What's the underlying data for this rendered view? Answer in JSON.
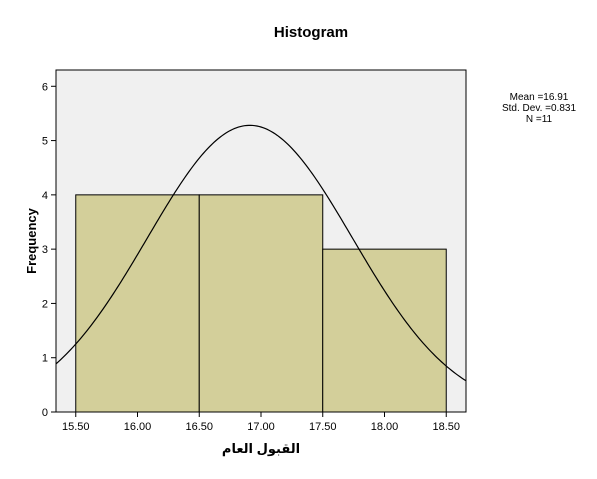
{
  "chart_data": {
    "type": "histogram",
    "title": "Histogram",
    "xlabel": "القبول العام",
    "ylabel": "Frequency",
    "xlim": [
      15.34,
      18.66
    ],
    "ylim": [
      0,
      6.3
    ],
    "x_ticks": [
      "15.50",
      "16.00",
      "16.50",
      "17.00",
      "17.50",
      "18.00",
      "18.50"
    ],
    "y_ticks": [
      "0",
      "1",
      "2",
      "3",
      "4",
      "5",
      "6"
    ],
    "bins": [
      {
        "start": 15.5,
        "end": 16.5,
        "count": 4
      },
      {
        "start": 16.5,
        "end": 17.5,
        "count": 4
      },
      {
        "start": 17.5,
        "end": 18.5,
        "count": 3
      }
    ],
    "normal_curve": {
      "mean": 16.91,
      "std": 0.831,
      "n": 11,
      "bin_width": 1
    },
    "stats": {
      "mean": "Mean =16.91",
      "std_dev": "Std. Dev. =0.831",
      "n": "N =11"
    },
    "grid": false,
    "colors": {
      "bar_fill": "#d3cf9a",
      "bar_stroke": "#000000",
      "plot_background": "#f0f0f0",
      "curve": "#000000"
    }
  }
}
